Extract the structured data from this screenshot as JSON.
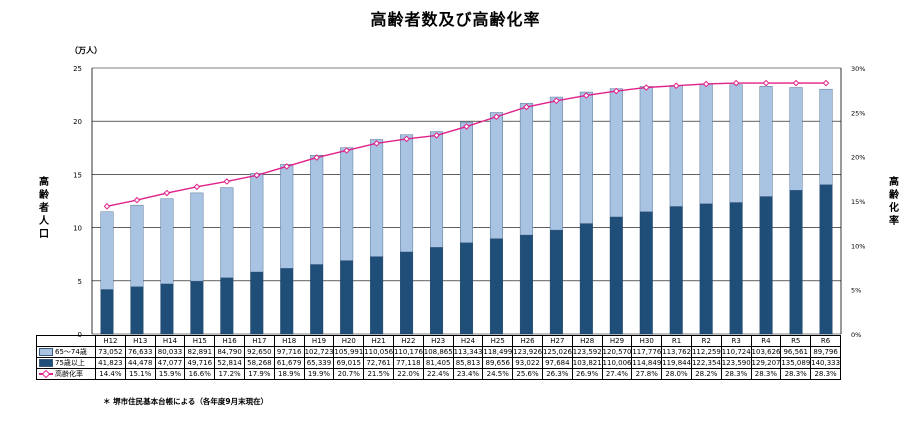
{
  "chart_data": {
    "type": "bar",
    "title": "高齢者数及び高齢化率",
    "unit_label": "（万人）",
    "ylabel_left": "高齢者人口",
    "ylabel_right": "高齢化率",
    "footnote": "＊ 堺市住民基本台帳による（各年度9月末現在）",
    "ylim": [
      0,
      25
    ],
    "yticks": [
      "0",
      "5",
      "10",
      "15",
      "20",
      "25"
    ],
    "y2lim": [
      0,
      30
    ],
    "y2ticks": [
      "0%",
      "5%",
      "10%",
      "15%",
      "20%",
      "25%",
      "30%"
    ],
    "categories": [
      "H12",
      "H13",
      "H14",
      "H15",
      "H16",
      "H17",
      "H18",
      "H19",
      "H20",
      "H21",
      "H22",
      "H23",
      "H24",
      "H25",
      "H26",
      "H27",
      "H28",
      "H29",
      "H30",
      "R1",
      "R2",
      "R3",
      "R4",
      "R5",
      "R6"
    ],
    "series": [
      {
        "name": "65～74歳",
        "color": "#a9c4e3",
        "labels": [
          "73,052",
          "76,633",
          "80,033",
          "82,891",
          "84,790",
          "92,650",
          "97,716",
          "102,723",
          "105,991",
          "110,056",
          "110,176",
          "108,865",
          "113,343",
          "118,499",
          "123,926",
          "125,026",
          "123,592",
          "120,570",
          "117,776",
          "113,762",
          "112,259",
          "110,724",
          "103,626",
          "96,561",
          "89,796"
        ],
        "values": [
          73052,
          76633,
          80033,
          82891,
          84790,
          92650,
          97716,
          102723,
          105991,
          110056,
          110176,
          108865,
          113343,
          118499,
          123926,
          125026,
          123592,
          120570,
          117776,
          113762,
          112259,
          110724,
          103626,
          96561,
          89796
        ]
      },
      {
        "name": "75歳以上",
        "color": "#1f4e79",
        "labels": [
          "41,823",
          "44,478",
          "47,077",
          "49,716",
          "52,814",
          "58,268",
          "61,679",
          "65,339",
          "69,015",
          "72,761",
          "77,118",
          "81,405",
          "85,813",
          "89,656",
          "93,022",
          "97,684",
          "103,821",
          "110,006",
          "114,849",
          "119,844",
          "122,354",
          "123,590",
          "129,207",
          "135,089",
          "140,333"
        ],
        "values": [
          41823,
          44478,
          47077,
          49716,
          52814,
          58268,
          61679,
          65339,
          69015,
          72761,
          77118,
          81405,
          85813,
          89656,
          93022,
          97684,
          103821,
          110006,
          114849,
          119844,
          122354,
          123590,
          129207,
          135089,
          140333
        ]
      },
      {
        "name": "高齢化率",
        "color": "#e0218a",
        "labels": [
          "14.4%",
          "15.1%",
          "15.9%",
          "16.6%",
          "17.2%",
          "17.9%",
          "18.9%",
          "19.9%",
          "20.7%",
          "21.5%",
          "22.0%",
          "22.4%",
          "23.4%",
          "24.5%",
          "25.6%",
          "26.3%",
          "26.9%",
          "27.4%",
          "27.8%",
          "28.0%",
          "28.2%",
          "28.3%",
          "28.3%",
          "28.3%",
          "28.3%"
        ],
        "values": [
          14.4,
          15.1,
          15.9,
          16.6,
          17.2,
          17.9,
          18.9,
          19.9,
          20.7,
          21.5,
          22.0,
          22.4,
          23.4,
          24.5,
          25.6,
          26.3,
          26.9,
          27.4,
          27.8,
          28.0,
          28.2,
          28.3,
          28.3,
          28.3,
          28.3
        ]
      }
    ],
    "grid": true
  }
}
